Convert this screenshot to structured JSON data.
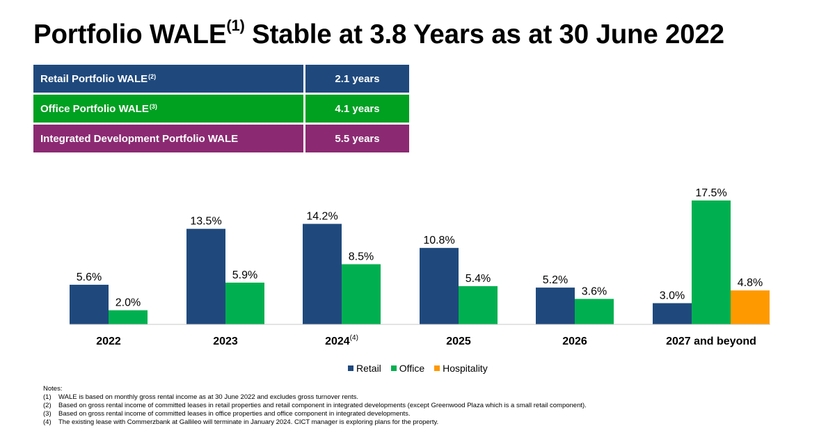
{
  "title": {
    "main": "Portfolio WALE",
    "sup": "(1)",
    "rest": "Stable at 3.8 Years as at 30 June 2022"
  },
  "wale_table": [
    {
      "label": "Retail Portfolio WALE",
      "sup": "(2)",
      "value": "2.1 years",
      "color": "#1f497d"
    },
    {
      "label": "Office Portfolio WALE",
      "sup": "(3)",
      "value": "4.1 years",
      "color": "#00a021"
    },
    {
      "label": "Integrated Development Portfolio WALE",
      "sup": "",
      "value": "5.5 years",
      "color": "#8b2a72"
    }
  ],
  "chart_data": {
    "type": "bar",
    "categories": [
      "2022",
      "2023",
      "2024",
      "2025",
      "2026",
      "2027 and beyond"
    ],
    "category_sups": [
      "",
      "",
      "(4)",
      "",
      "",
      ""
    ],
    "series": [
      {
        "name": "Retail",
        "color": "#1f497d",
        "values": [
          5.6,
          13.5,
          14.2,
          10.8,
          5.2,
          3.0
        ]
      },
      {
        "name": "Office",
        "color": "#00b050",
        "values": [
          2.0,
          5.9,
          8.5,
          5.4,
          3.6,
          17.5
        ]
      },
      {
        "name": "Hospitality",
        "color": "#ff9900",
        "values": [
          null,
          null,
          null,
          null,
          null,
          4.8
        ]
      }
    ],
    "value_suffix": "%",
    "ylim": [
      0,
      17.5
    ],
    "grid": false,
    "legend_position": "bottom"
  },
  "notes": {
    "heading": "Notes:",
    "items": [
      {
        "num": "(1)",
        "text": "WALE is based on monthly gross rental income as at 30 June 2022 and excludes gross turnover rents."
      },
      {
        "num": "(2)",
        "text": "Based on gross rental income of committed leases in retail properties and retail component in integrated developments (except Greenwood Plaza which is a small retail component)."
      },
      {
        "num": "(3)",
        "text": "Based on gross rental income of committed leases in office properties and office component in integrated developments."
      },
      {
        "num": "(4)",
        "text": "The existing lease with Commerzbank at Gallileo will terminate in January 2024. CICT manager is exploring plans for the property."
      }
    ]
  }
}
